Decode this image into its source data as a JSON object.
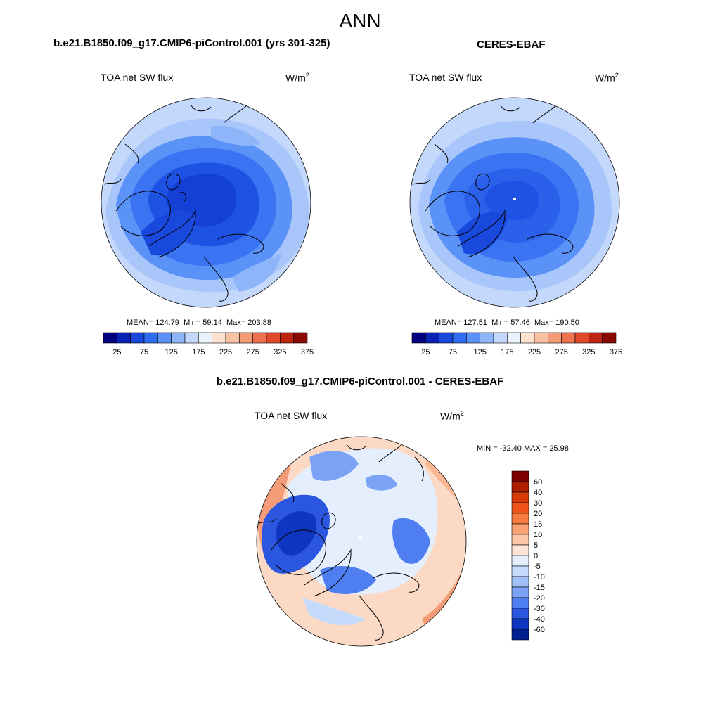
{
  "figure": {
    "title": "ANN"
  },
  "chart_data": [
    {
      "type": "heatmap",
      "projection": "polar-stereographic-north",
      "title": "b.e21.B1850.f09_g17.CMIP6-piControl.001 (yrs 301-325)",
      "left_label": "TOA net SW flux",
      "unit_base": "W/m",
      "unit_exp": "2",
      "stats": {
        "mean_label": "MEAN=",
        "mean": "124.79",
        "min_label": "Min=",
        "min": "59.14",
        "max_label": "Max=",
        "max": "203.88"
      },
      "colorbar": {
        "orientation": "horizontal",
        "tick_labels": [
          "25",
          "75",
          "125",
          "175",
          "225",
          "275",
          "325",
          "375"
        ],
        "colors": [
          "#000080",
          "#0a22b4",
          "#1848dc",
          "#2e6cf2",
          "#5a92f8",
          "#8eb4fa",
          "#c4d8fc",
          "#eaf2fe",
          "#fde2d0",
          "#f9c0a2",
          "#f49c78",
          "#ee7250",
          "#e04a2c",
          "#bf2410",
          "#8a0a02"
        ]
      }
    },
    {
      "type": "heatmap",
      "projection": "polar-stereographic-north",
      "title": "CERES-EBAF",
      "left_label": "TOA net SW flux",
      "unit_base": "W/m",
      "unit_exp": "2",
      "stats": {
        "mean_label": "MEAN=",
        "mean": "127.51",
        "min_label": "Min=",
        "min": "57.46",
        "max_label": "Max=",
        "max": "190.50"
      },
      "colorbar": {
        "orientation": "horizontal",
        "tick_labels": [
          "25",
          "75",
          "125",
          "175",
          "225",
          "275",
          "325",
          "375"
        ],
        "colors": [
          "#000080",
          "#0a22b4",
          "#1848dc",
          "#2e6cf2",
          "#5a92f8",
          "#8eb4fa",
          "#c4d8fc",
          "#eaf2fe",
          "#fde2d0",
          "#f9c0a2",
          "#f49c78",
          "#ee7250",
          "#e04a2c",
          "#bf2410",
          "#8a0a02"
        ]
      }
    },
    {
      "type": "heatmap",
      "projection": "polar-stereographic-north",
      "title": "b.e21.B1850.f09_g17.CMIP6-piControl.001 - CERES-EBAF",
      "left_label": "TOA net SW flux",
      "unit_base": "W/m",
      "unit_exp": "2",
      "stats_line": "MIN = -32.40 MAX =  25.98",
      "colorbar": {
        "orientation": "vertical",
        "tick_labels": [
          "60",
          "40",
          "30",
          "20",
          "15",
          "10",
          "5",
          "0",
          "-5",
          "-10",
          "-15",
          "-20",
          "-30",
          "-40",
          "-60"
        ],
        "colors": [
          "#7f0000",
          "#b01e00",
          "#d83a0a",
          "#f0541c",
          "#f77a40",
          "#f9a275",
          "#fbc7a8",
          "#fde6d6",
          "#e4eefd",
          "#c6dafb",
          "#a2c0f8",
          "#7aa2f5",
          "#4f7ef0",
          "#2a56e0",
          "#0f36c0",
          "#00208f"
        ]
      }
    }
  ]
}
